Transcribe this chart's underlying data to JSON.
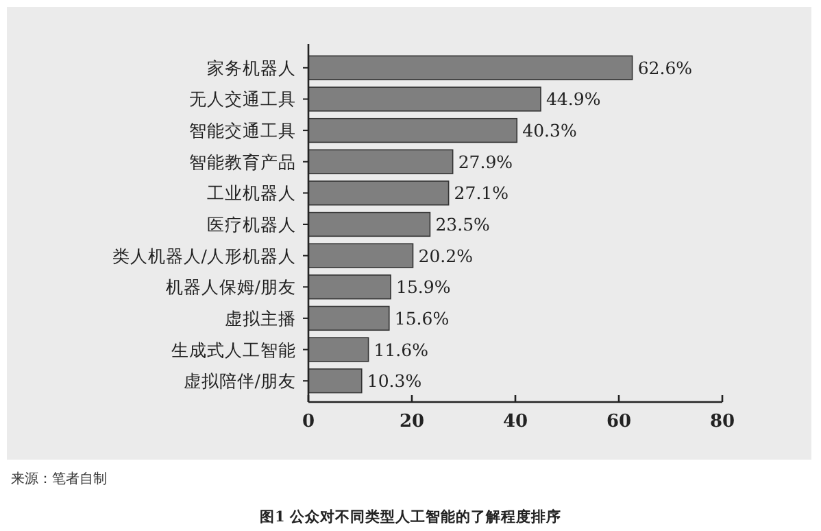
{
  "chart_data": {
    "type": "bar",
    "orientation": "horizontal",
    "title": "图1 公众对不同类型人工智能的了解程度排序",
    "categories": [
      "家务机器人",
      "无人交通工具",
      "智能交通工具",
      "智能教育产品",
      "工业机器人",
      "医疗机器人",
      "类人机器人/人形机器人",
      "机器人保姆/朋友",
      "虚拟主播",
      "生成式人工智能",
      "虚拟陪伴/朋友"
    ],
    "values": [
      62.6,
      44.9,
      40.3,
      27.9,
      27.1,
      23.5,
      20.2,
      15.9,
      15.6,
      11.6,
      10.3
    ],
    "value_labels": [
      "62.6%",
      "44.9%",
      "40.3%",
      "27.9%",
      "27.1%",
      "23.5%",
      "20.2%",
      "15.9%",
      "15.6%",
      "11.6%",
      "10.3%"
    ],
    "color": "#7f7f7f",
    "xlim": [
      0,
      80
    ],
    "xticks": [
      0,
      20,
      40,
      60,
      80
    ],
    "grid": false,
    "annotations": [
      "来源：笔者自制"
    ]
  }
}
